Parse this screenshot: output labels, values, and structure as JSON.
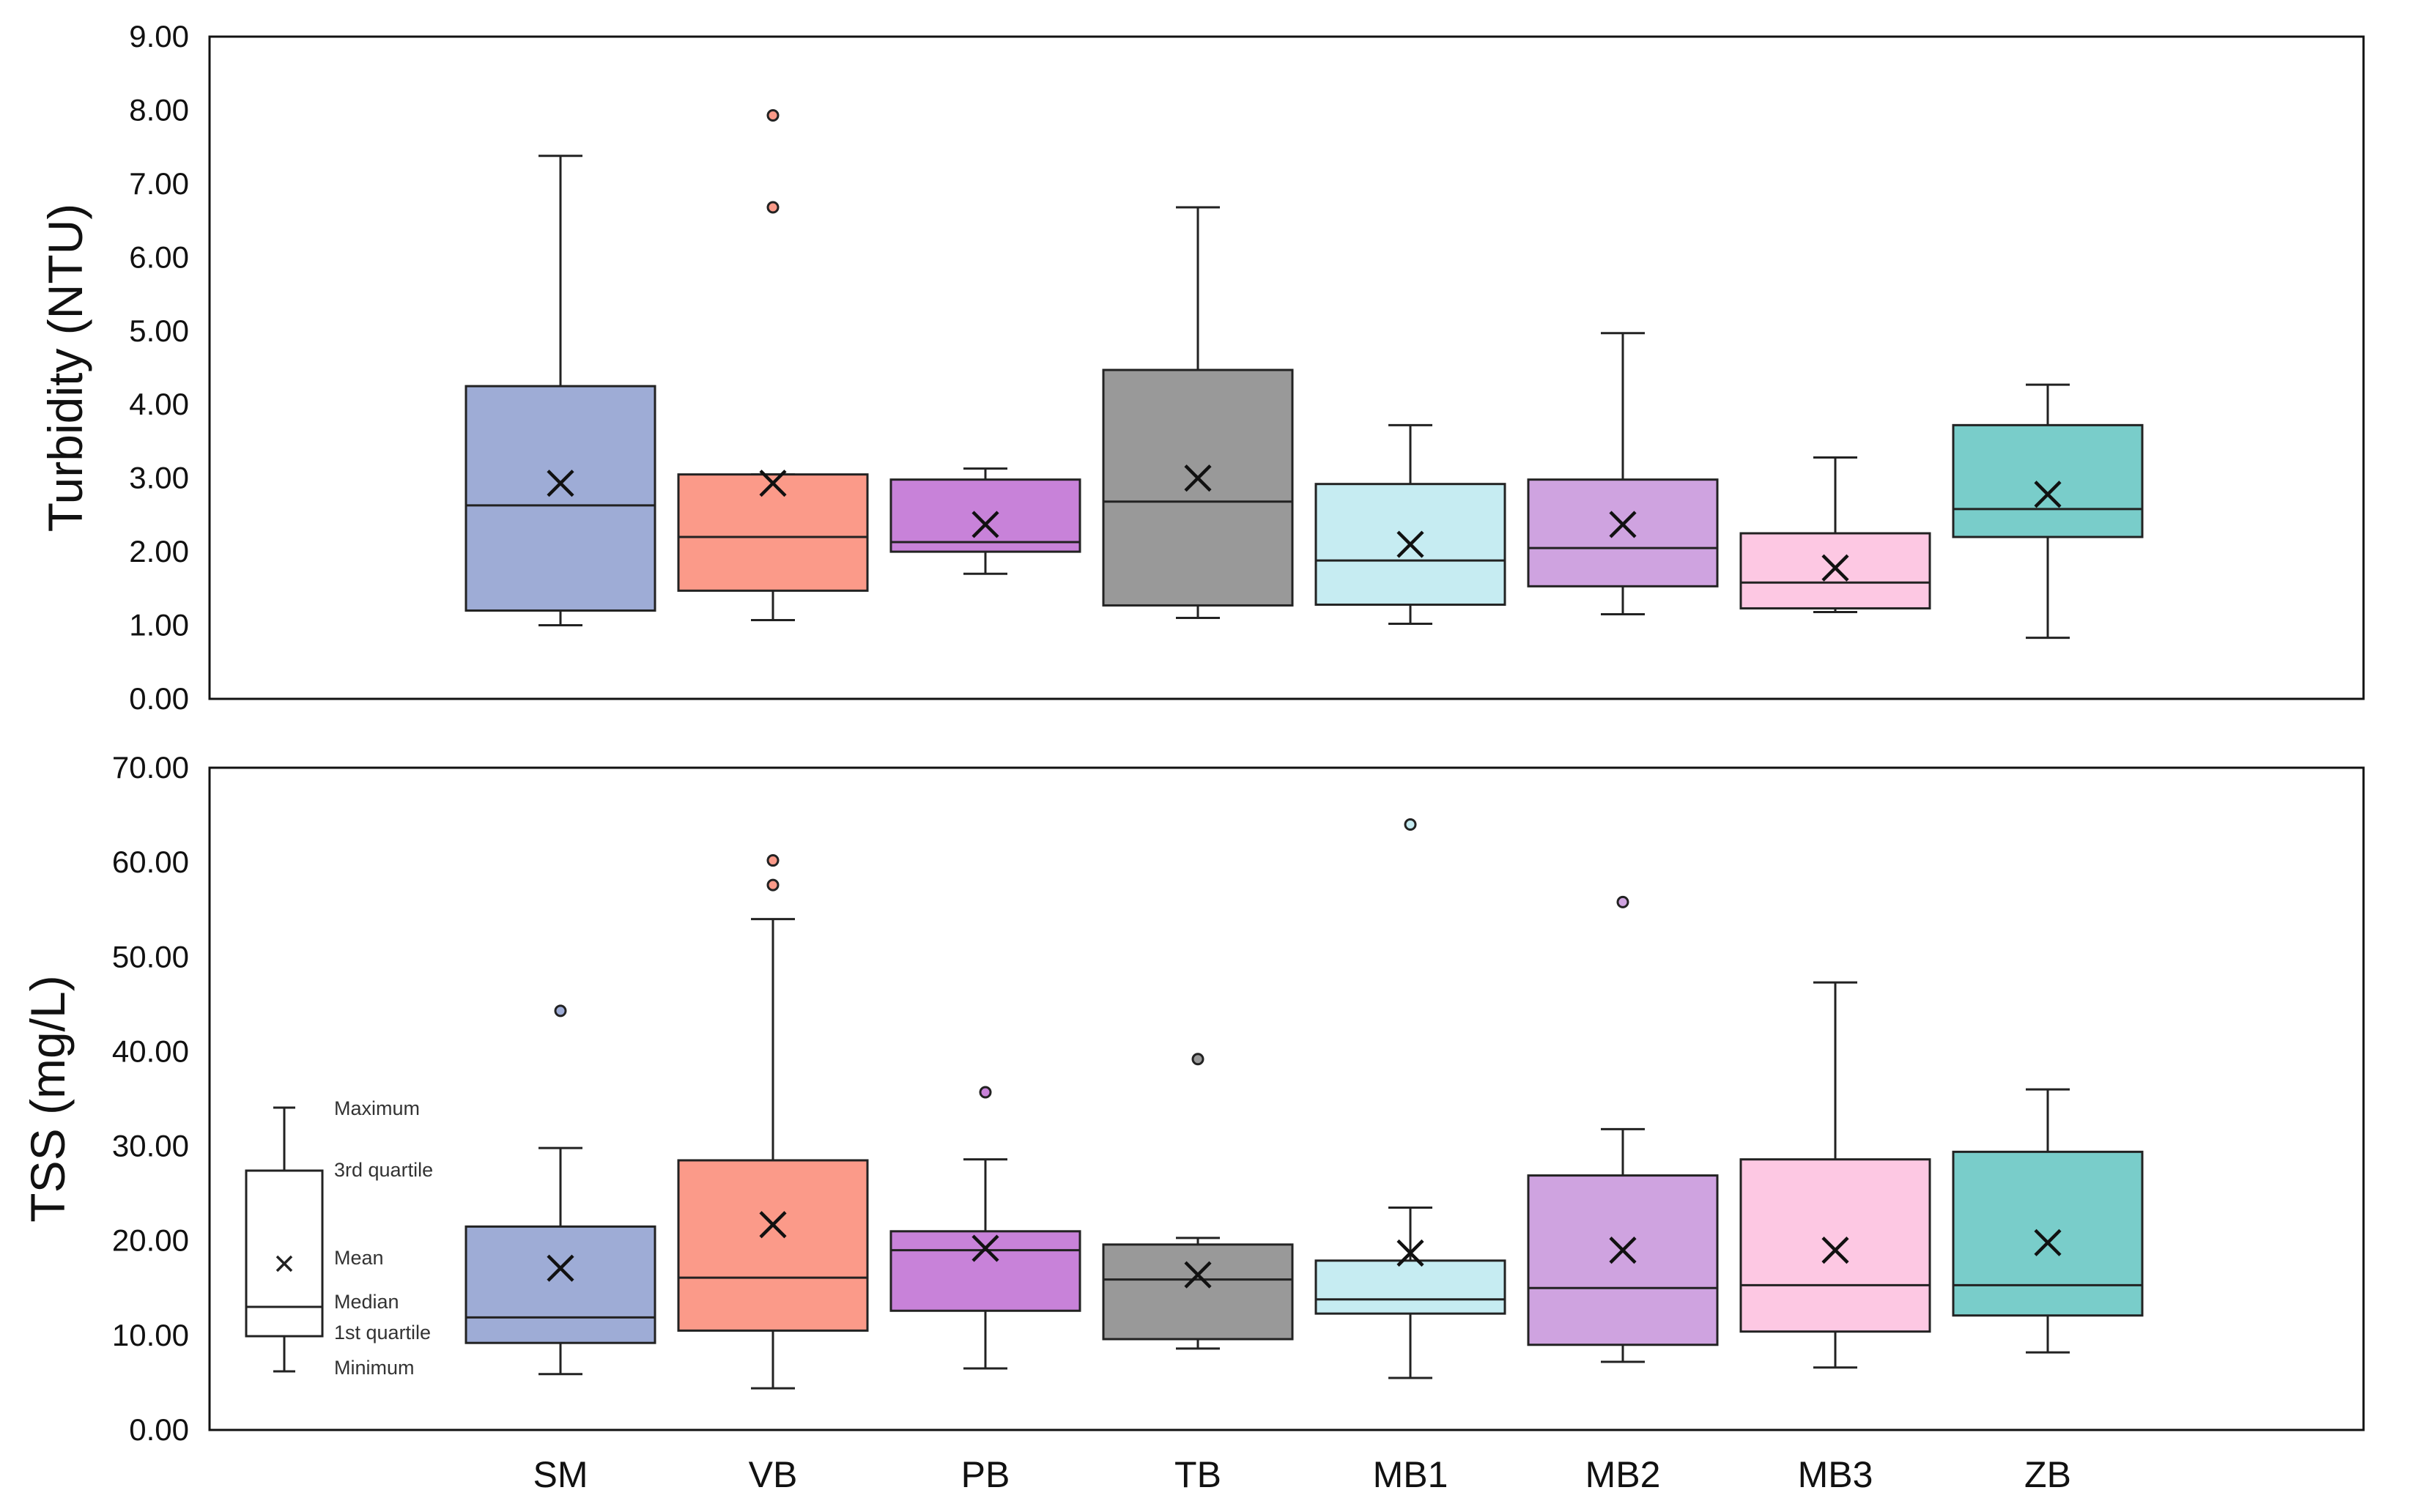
{
  "chart_data": [
    {
      "type": "box",
      "ylabel": "Turbidity (NTU)",
      "ylim": [
        0,
        9
      ],
      "ytick_step": 1,
      "ytick_labels": [
        "0.00",
        "1.00",
        "2.00",
        "3.00",
        "4.00",
        "5.00",
        "6.00",
        "7.00",
        "8.00",
        "9.00"
      ],
      "series": [
        {
          "name": "SM",
          "min": 1.0,
          "q1": 1.2,
          "median": 2.63,
          "q3": 4.25,
          "max": 7.38,
          "mean": 2.93,
          "outliers": []
        },
        {
          "name": "VB",
          "min": 1.07,
          "q1": 1.47,
          "median": 2.2,
          "q3": 3.05,
          "max": 3.05,
          "mean": 2.93,
          "outliers": [
            7.93,
            6.68
          ]
        },
        {
          "name": "PB",
          "min": 1.7,
          "q1": 2.0,
          "median": 2.13,
          "q3": 2.98,
          "max": 3.13,
          "mean": 2.37,
          "outliers": []
        },
        {
          "name": "TB",
          "min": 1.1,
          "q1": 1.27,
          "median": 2.68,
          "q3": 4.47,
          "max": 6.68,
          "mean": 3.0,
          "outliers": []
        },
        {
          "name": "MB1",
          "min": 1.02,
          "q1": 1.28,
          "median": 1.88,
          "q3": 2.92,
          "max": 3.72,
          "mean": 2.1,
          "outliers": []
        },
        {
          "name": "MB2",
          "min": 1.15,
          "q1": 1.53,
          "median": 2.05,
          "q3": 2.98,
          "max": 4.97,
          "mean": 2.37,
          "outliers": []
        },
        {
          "name": "MB3",
          "min": 1.18,
          "q1": 1.23,
          "median": 1.58,
          "q3": 2.25,
          "max": 3.28,
          "mean": 1.78,
          "outliers": []
        },
        {
          "name": "ZB",
          "min": 0.83,
          "q1": 2.2,
          "median": 2.58,
          "q3": 3.72,
          "max": 4.27,
          "mean": 2.78,
          "outliers": []
        }
      ]
    },
    {
      "type": "box",
      "ylabel": "TSS (mg/L)",
      "ylim": [
        0,
        70
      ],
      "ytick_step": 10,
      "ytick_labels": [
        "0.00",
        "10.00",
        "20.00",
        "30.00",
        "40.00",
        "50.00",
        "60.00",
        "70.00"
      ],
      "categories": [
        "SM",
        "VB",
        "PB",
        "TB",
        "MB1",
        "MB2",
        "MB3",
        "ZB"
      ],
      "series": [
        {
          "name": "SM",
          "min": 5.9,
          "q1": 9.2,
          "median": 11.9,
          "q3": 21.5,
          "max": 29.8,
          "mean": 17.1,
          "outliers": [
            44.3
          ]
        },
        {
          "name": "VB",
          "min": 4.4,
          "q1": 10.5,
          "median": 16.1,
          "q3": 28.5,
          "max": 54.0,
          "mean": 21.7,
          "outliers": [
            60.2,
            57.6
          ]
        },
        {
          "name": "PB",
          "min": 6.5,
          "q1": 12.6,
          "median": 19.0,
          "q3": 21.0,
          "max": 28.6,
          "mean": 19.2,
          "outliers": [
            35.7
          ]
        },
        {
          "name": "TB",
          "min": 8.6,
          "q1": 9.6,
          "median": 15.9,
          "q3": 19.6,
          "max": 20.3,
          "mean": 16.4,
          "outliers": [
            39.2
          ]
        },
        {
          "name": "MB1",
          "min": 5.5,
          "q1": 12.3,
          "median": 13.8,
          "q3": 17.9,
          "max": 23.5,
          "mean": 18.7,
          "outliers": [
            64.0
          ]
        },
        {
          "name": "MB2",
          "min": 7.2,
          "q1": 9.0,
          "median": 15.0,
          "q3": 26.9,
          "max": 31.8,
          "mean": 19.0,
          "outliers": [
            55.8
          ]
        },
        {
          "name": "MB3",
          "min": 6.6,
          "q1": 10.4,
          "median": 15.3,
          "q3": 28.6,
          "max": 47.3,
          "mean": 19.0,
          "outliers": []
        },
        {
          "name": "ZB",
          "min": 8.2,
          "q1": 12.1,
          "median": 15.3,
          "q3": 29.4,
          "max": 36.0,
          "mean": 19.8,
          "outliers": []
        }
      ]
    }
  ],
  "colors": {
    "SM": "#9eacd6",
    "VB": "#fb9a89",
    "PB": "#c882d9",
    "TB": "#999999",
    "MB1": "#c6ecf2",
    "MB2": "#cfa3e0",
    "MB3": "#fdc8e3",
    "ZB": "#79cdca"
  },
  "legend": {
    "maximum": "Maximum",
    "third_quartile": "3rd quartile",
    "mean": "Mean",
    "median": "Median",
    "first_quartile": "1st quartile",
    "minimum": "Minimum"
  }
}
